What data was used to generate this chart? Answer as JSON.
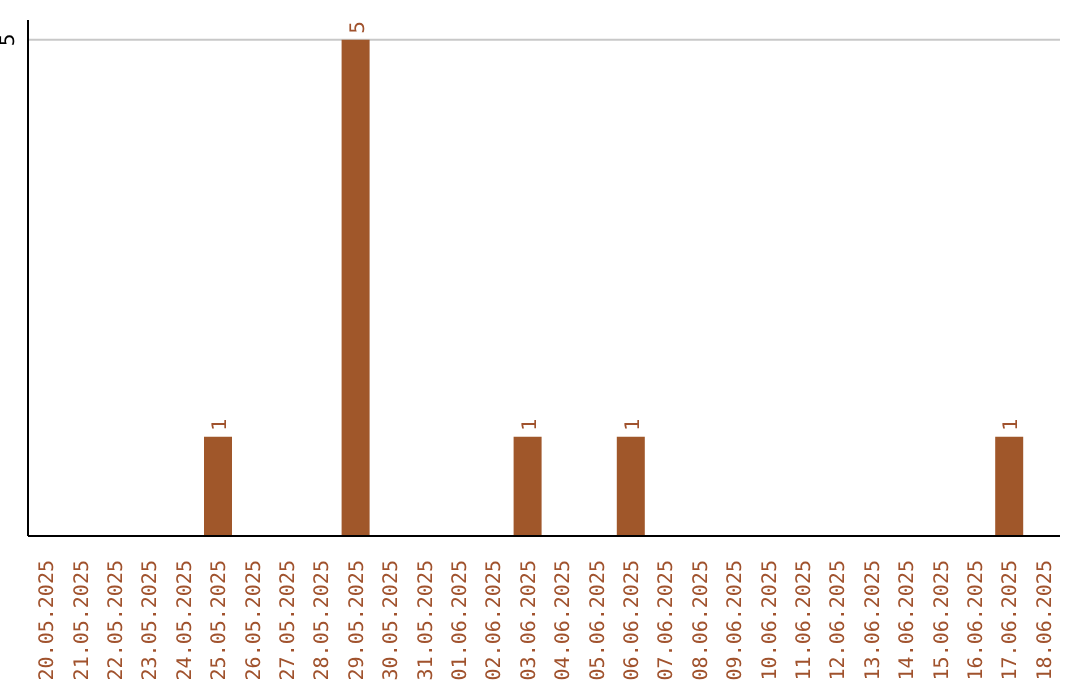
{
  "chart_data": {
    "type": "bar",
    "categories": [
      "20.05.2025",
      "21.05.2025",
      "22.05.2025",
      "23.05.2025",
      "24.05.2025",
      "25.05.2025",
      "26.05.2025",
      "27.05.2025",
      "28.05.2025",
      "29.05.2025",
      "30.05.2025",
      "31.05.2025",
      "01.06.2025",
      "02.06.2025",
      "03.06.2025",
      "04.06.2025",
      "05.06.2025",
      "06.06.2025",
      "07.06.2025",
      "08.06.2025",
      "09.06.2025",
      "10.06.2025",
      "11.06.2025",
      "12.06.2025",
      "13.06.2025",
      "14.06.2025",
      "15.06.2025",
      "16.06.2025",
      "17.06.2025",
      "18.06.2025"
    ],
    "values": [
      0,
      0,
      0,
      0,
      0,
      1,
      0,
      0,
      0,
      5,
      0,
      0,
      0,
      0,
      1,
      0,
      0,
      1,
      0,
      0,
      0,
      0,
      0,
      0,
      0,
      0,
      0,
      0,
      1,
      0
    ],
    "value_labels": [
      null,
      null,
      null,
      null,
      null,
      "1",
      null,
      null,
      null,
      "5",
      null,
      null,
      null,
      null,
      "1",
      null,
      null,
      "1",
      null,
      null,
      null,
      null,
      null,
      null,
      null,
      null,
      null,
      null,
      "1",
      null
    ],
    "color": "#a0572a",
    "ylim": [
      0,
      5.2
    ],
    "yticks": [
      5
    ],
    "grid": "y"
  }
}
